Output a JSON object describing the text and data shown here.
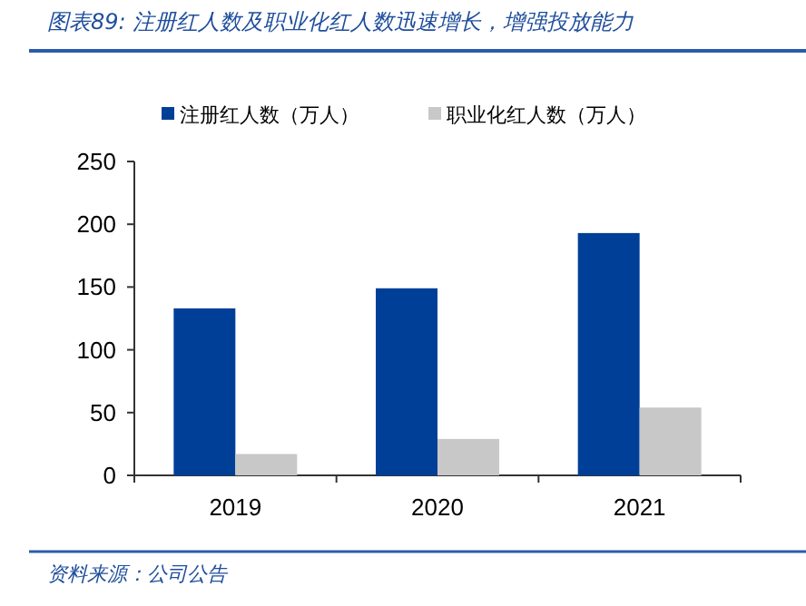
{
  "chart_data": {
    "type": "bar",
    "title": "图表89: 注册红人数及职业化红人数迅速增长，增强投放能力",
    "categories": [
      "2019",
      "2020",
      "2021"
    ],
    "series": [
      {
        "name": "注册红人数（万人）",
        "color": "#003f98",
        "values": [
          133,
          149,
          193
        ]
      },
      {
        "name": "职业化红人数（万人）",
        "color": "#c8c8c8",
        "values": [
          17,
          29,
          54
        ]
      }
    ],
    "ylim": [
      0,
      250
    ],
    "yticks": [
      0,
      50,
      100,
      150,
      200,
      250
    ],
    "grid": false,
    "legend": "top",
    "annotations": [
      "资料来源：公司公告"
    ]
  }
}
